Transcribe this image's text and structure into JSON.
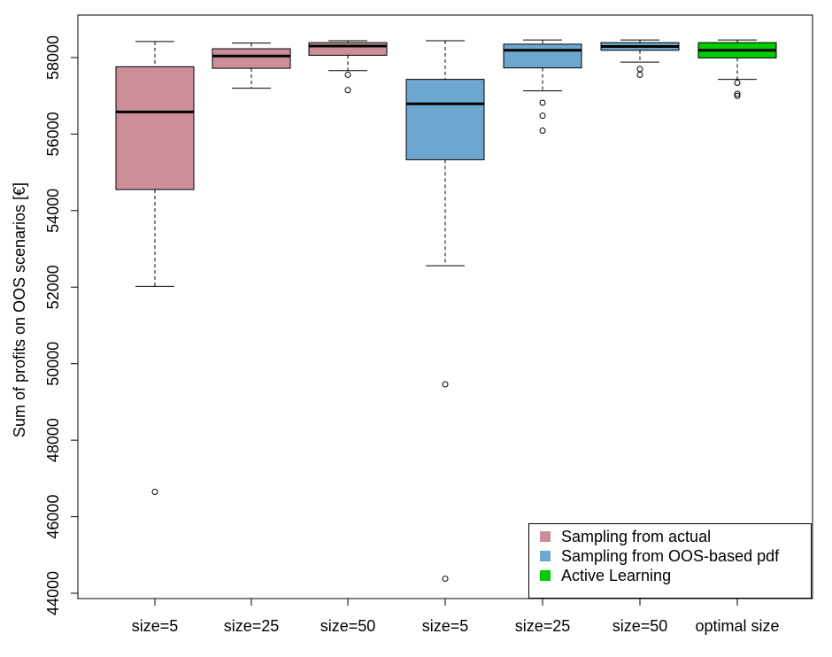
{
  "chart_data": {
    "type": "boxplot",
    "title": "",
    "xlabel": "",
    "ylabel": "Sum of profits on OOS scenarios [€]",
    "ylim": [
      43800,
      58900
    ],
    "yticks": [
      44000,
      46000,
      48000,
      50000,
      52000,
      54000,
      56000,
      58000
    ],
    "grid": false,
    "legend_position": "bottom-right",
    "categories": [
      "size=5",
      "size=25",
      "size=50",
      "size=5",
      "size=25",
      "size=50",
      "optimal size"
    ],
    "legend": [
      {
        "label": "Sampling from actual",
        "color": "#cc8f99"
      },
      {
        "label": "Sampling from OOS-based pdf",
        "color": "#6da7cf"
      },
      {
        "label": "Active Learning",
        "color": "#00cc00"
      }
    ],
    "boxes": [
      {
        "group": 0,
        "min": 52020,
        "q1": 54550,
        "median": 56580,
        "q3": 57760,
        "max": 58420,
        "outliers": [
          46650
        ]
      },
      {
        "group": 0,
        "min": 57200,
        "q1": 57720,
        "median": 58040,
        "q3": 58230,
        "max": 58380,
        "outliers": []
      },
      {
        "group": 0,
        "min": 57660,
        "q1": 58060,
        "median": 58300,
        "q3": 58390,
        "max": 58440,
        "outliers": [
          57550,
          57150
        ]
      },
      {
        "group": 1,
        "min": 52560,
        "q1": 55330,
        "median": 56790,
        "q3": 57430,
        "max": 58440,
        "outliers": [
          49460,
          44380
        ]
      },
      {
        "group": 1,
        "min": 57130,
        "q1": 57730,
        "median": 58190,
        "q3": 58350,
        "max": 58460,
        "outliers": [
          56820,
          56480,
          56090
        ]
      },
      {
        "group": 1,
        "min": 57880,
        "q1": 58190,
        "median": 58290,
        "q3": 58390,
        "max": 58460,
        "outliers": [
          57700,
          57550
        ]
      },
      {
        "group": 2,
        "min": 57430,
        "q1": 57990,
        "median": 58190,
        "q3": 58390,
        "max": 58460,
        "outliers": [
          57340,
          57050,
          57000
        ]
      }
    ]
  }
}
